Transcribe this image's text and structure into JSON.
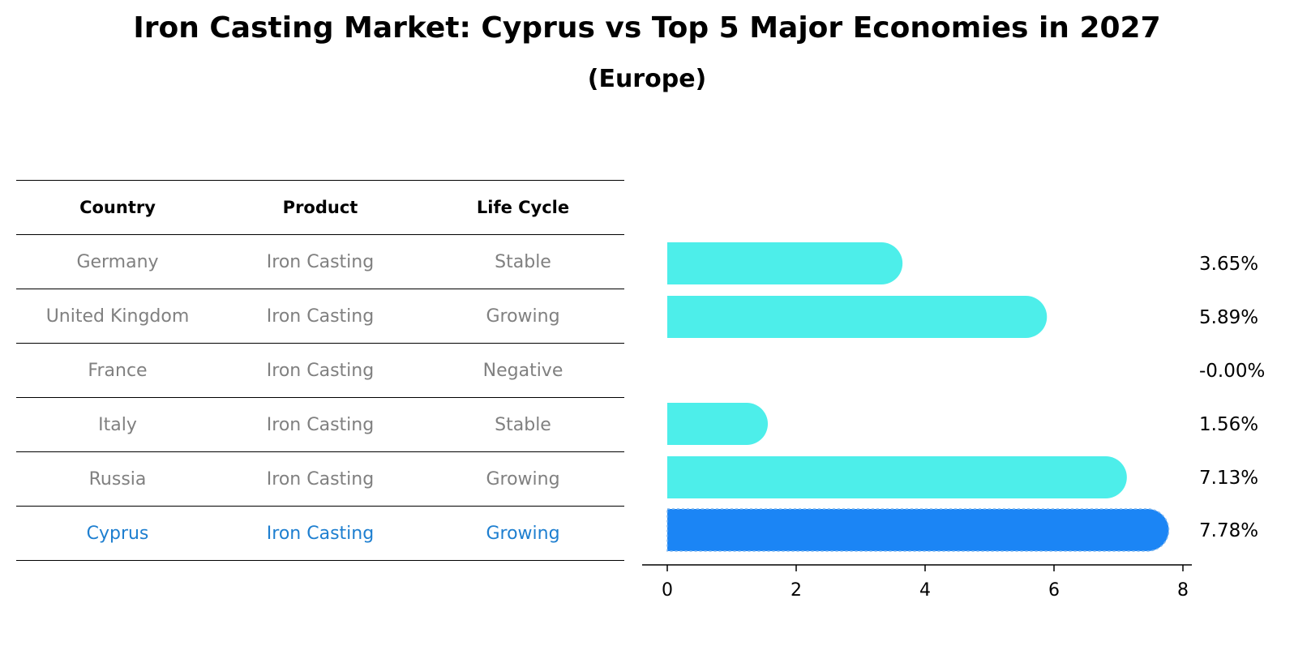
{
  "title": "Iron Casting Market: Cyprus vs Top 5 Major Economies in 2027",
  "subtitle": "(Europe)",
  "table": {
    "headers": [
      "Country",
      "Product",
      "Life Cycle"
    ],
    "rows": [
      [
        "Germany",
        "Iron Casting",
        "Stable"
      ],
      [
        "United Kingdom",
        "Iron Casting",
        "Growing"
      ],
      [
        "France",
        "Iron Casting",
        "Negative"
      ],
      [
        "Italy",
        "Iron Casting",
        "Stable"
      ],
      [
        "Russia",
        "Iron Casting",
        "Growing"
      ],
      [
        "Cyprus",
        "Iron Casting",
        "Growing"
      ]
    ],
    "highlight_row": 5
  },
  "chart_data": {
    "type": "bar",
    "orientation": "horizontal",
    "categories": [
      "Germany",
      "United Kingdom",
      "France",
      "Italy",
      "Russia",
      "Cyprus"
    ],
    "values": [
      3.65,
      5.89,
      -0.0,
      1.56,
      7.13,
      7.78
    ],
    "value_labels": [
      "3.65%",
      "5.89%",
      "-0.00%",
      "1.56%",
      "7.13%",
      "7.78%"
    ],
    "xlim": [
      0,
      8
    ],
    "xticks": [
      0,
      2,
      4,
      6,
      8
    ],
    "highlight_index": 5,
    "colors": {
      "bar": "#4deeea",
      "highlight": "#1b85f5"
    }
  }
}
